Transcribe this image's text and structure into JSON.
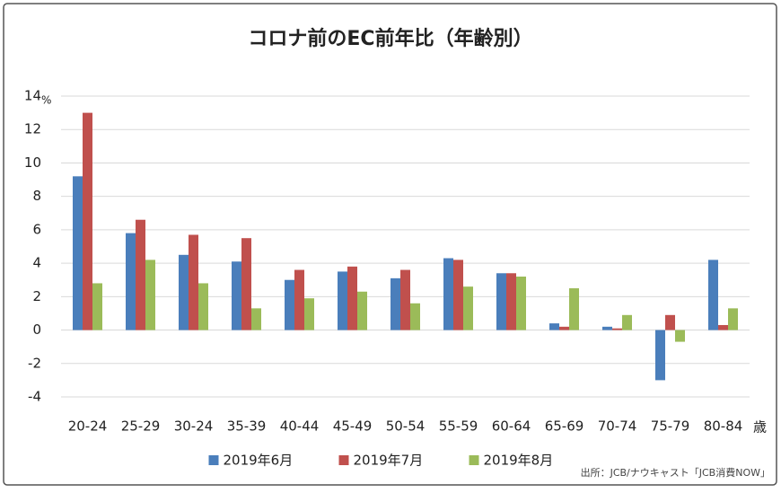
{
  "chart_data": {
    "type": "bar",
    "title": "コロナ前のEC前年比（年齢別）",
    "y_unit": "%",
    "x_unit": "歳",
    "source": "出所：JCB/ナウキャスト「JCB消費NOW」",
    "categories": [
      "20-24",
      "25-29",
      "30-24",
      "35-39",
      "40-44",
      "45-49",
      "50-54",
      "55-59",
      "60-64",
      "65-69",
      "70-74",
      "75-79",
      "80-84"
    ],
    "series": [
      {
        "name": "2019年6月",
        "color": "#4a7ebb",
        "values": [
          9.2,
          5.8,
          4.5,
          4.1,
          3.0,
          3.5,
          3.1,
          4.3,
          3.4,
          0.4,
          0.2,
          -3.0,
          4.2
        ]
      },
      {
        "name": "2019年7月",
        "color": "#c0504d",
        "values": [
          13.0,
          6.6,
          5.7,
          5.5,
          3.6,
          3.8,
          3.6,
          4.2,
          3.4,
          0.2,
          0.1,
          0.9,
          0.3
        ]
      },
      {
        "name": "2019年8月",
        "color": "#9bbb59",
        "values": [
          2.8,
          4.2,
          2.8,
          1.3,
          1.9,
          2.3,
          1.6,
          2.6,
          3.2,
          2.5,
          0.9,
          -0.7,
          1.3
        ]
      }
    ],
    "ylim": [
      -4,
      14
    ],
    "yticks": [
      -4,
      -2,
      0,
      2,
      4,
      6,
      8,
      10,
      12,
      14
    ],
    "grid": true,
    "legend": "bottom"
  }
}
